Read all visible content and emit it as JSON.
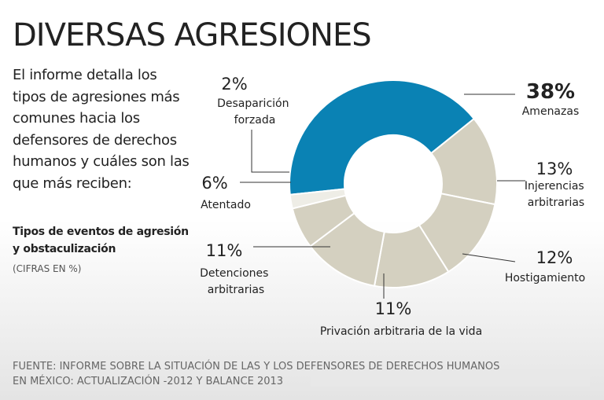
{
  "chart_data": {
    "type": "donut",
    "title": "DIVERSAS AGRESIONES",
    "intro": "El informe detalla los tipos de agresiones más comunes hacia los defensores de derechos humanos y cuáles son las que más reciben:",
    "subtitle": "Tipos de eventos de agresión y obstaculización",
    "units_note": "(CIFRAS EN %)",
    "source": [
      "FUENTE: INFORME SOBRE LA SITUACIÓN DE LAS Y LOS DEFENSORES DE DERECHOS HUMANOS",
      "EN MÉXICO: ACTUALIZACIÓN -2012 Y BALANCE 2013"
    ],
    "categories": [
      "Amenazas",
      "Injerencias arbitrarias",
      "Hostigamiento",
      "Privación arbitraria de la vida",
      "Detenciones arbitrarias",
      "Atentado",
      "Desaparición forzada"
    ],
    "values": [
      38,
      13,
      12,
      11,
      11,
      6,
      2
    ],
    "value_labels": [
      "38%",
      "13%",
      "12%",
      "11%",
      "11%",
      "6%",
      "2%"
    ],
    "colors": [
      "#0a82b4",
      "#d4d0c0",
      "#d4d0c0",
      "#d4d0c0",
      "#d4d0c0",
      "#d4d0c0",
      "#eeede6"
    ]
  }
}
